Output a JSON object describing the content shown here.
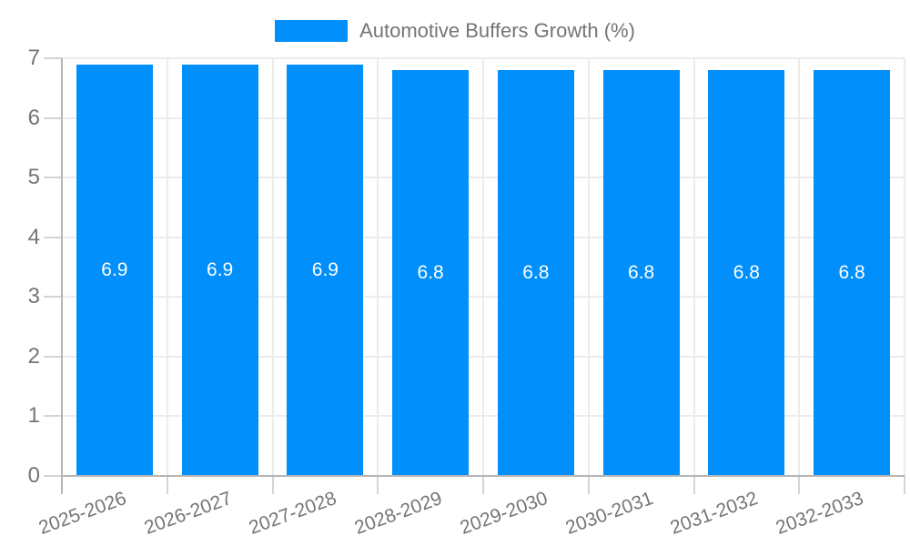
{
  "chart_data": {
    "type": "bar",
    "title": "Automotive Buffers Growth (%)",
    "legend": {
      "position": "top",
      "entries": [
        "Automotive Buffers Growth (%)"
      ]
    },
    "categories": [
      "2025-2026",
      "2026-2027",
      "2027-2028",
      "2028-2029",
      "2029-2030",
      "2030-2031",
      "2031-2032",
      "2032-2033"
    ],
    "values": [
      6.9,
      6.9,
      6.9,
      6.8,
      6.8,
      6.8,
      6.8,
      6.8
    ],
    "bar_value_labels": [
      "6.9",
      "6.9",
      "6.9",
      "6.8",
      "6.8",
      "6.8",
      "6.8",
      "6.8"
    ],
    "xlabel": "",
    "ylabel": "",
    "ylim": [
      0,
      7
    ],
    "yticks": [
      0,
      1,
      2,
      3,
      4,
      5,
      6,
      7
    ],
    "grid": true,
    "x_label_rotation_deg": -20,
    "colors": {
      "bar": "#008ffb",
      "axis_text": "#757575",
      "bar_label_text": "#ffffff",
      "gridline": "#ececec",
      "axis_line": "#b5b5b5",
      "tick_line": "#d4d4d4",
      "background": "#ffffff"
    }
  }
}
